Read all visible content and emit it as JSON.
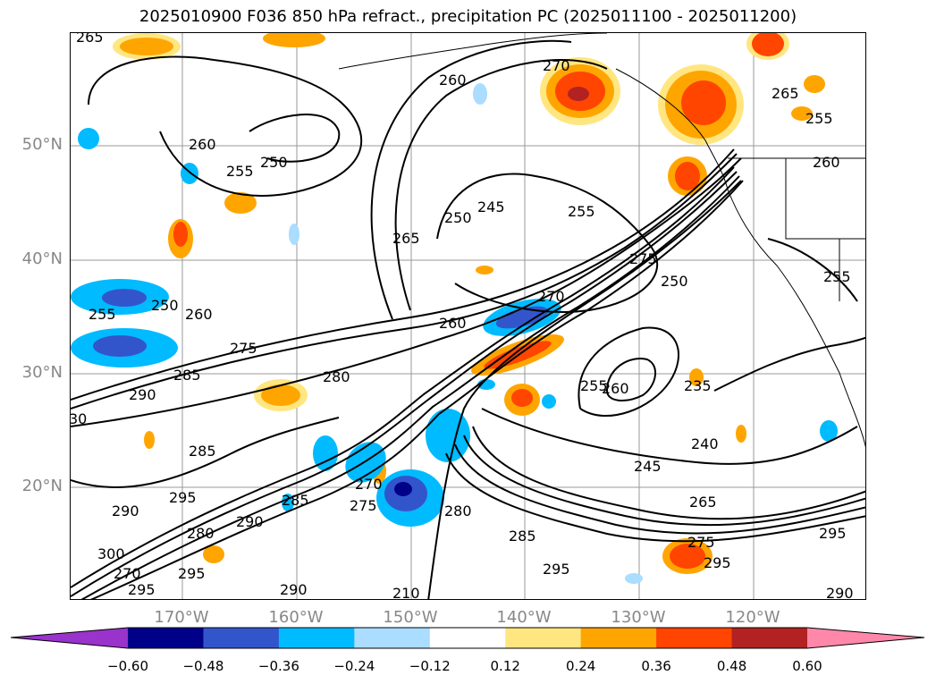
{
  "title": "2025010900 F036 850 hPa refract., precipitation PC (2025011100 - 2025011200)",
  "lat_labels": [
    "50°N",
    "40°N",
    "30°N",
    "20°N"
  ],
  "lon_labels": [
    "170°W",
    "160°W",
    "150°W",
    "140°W",
    "130°W",
    "120°W"
  ],
  "colorbar": {
    "ticks": [
      "−0.60",
      "−0.48",
      "−0.36",
      "−0.24",
      "−0.12",
      "0.12",
      "0.24",
      "0.36",
      "0.48",
      "0.60"
    ],
    "colors": [
      "#9933cc",
      "#000088",
      "#3355cc",
      "#00bbff",
      "#aaddff",
      "#ffffff",
      "#ffe680",
      "#ffa500",
      "#ff4500",
      "#b22222",
      "#ff88aa"
    ]
  },
  "contour_labels": [
    "265",
    "270",
    "260",
    "265",
    "255",
    "260",
    "255",
    "250",
    "265",
    "250",
    "245",
    "255",
    "275",
    "250",
    "260",
    "255",
    "250",
    "260",
    "270",
    "255",
    "260",
    "275",
    "285",
    "280",
    "290",
    "255",
    "260",
    "235",
    "240",
    "245",
    "285",
    "295",
    "290",
    "285",
    "280",
    "270",
    "275",
    "280",
    "290",
    "295",
    "300",
    "270",
    "295",
    "265",
    "275",
    "295",
    "285",
    "295",
    "290",
    "210",
    "290",
    "295",
    "30"
  ]
}
